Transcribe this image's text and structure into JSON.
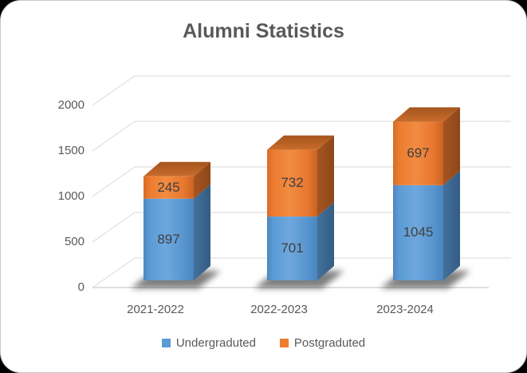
{
  "window": {
    "background_color": "#000000",
    "card_background_color": "#FFFFFF"
  },
  "chart_data": {
    "type": "bar",
    "stacked": true,
    "style": "3d",
    "title": "Alumni Statistics",
    "categories": [
      "2021-2022",
      "2022-2023",
      "2023-2024"
    ],
    "series": [
      {
        "name": "Undergraduted",
        "color": "#5B9BD5",
        "values": [
          897,
          701,
          1045
        ]
      },
      {
        "name": "Postgraduted",
        "color": "#ED7D31",
        "values": [
          245,
          732,
          697
        ]
      }
    ],
    "yticks": [
      0,
      500,
      1000,
      1500,
      2000
    ],
    "ylim": [
      0,
      2000
    ],
    "xlabel": "",
    "ylabel": "",
    "grid": true,
    "data_labels": true,
    "legend_position": "bottom",
    "colors": {
      "title_text": "#595959",
      "axis_text": "#595959",
      "data_label_text": "#3F3F3F",
      "gridline": "#D9D9D9",
      "axis_line": "#BFBFBF"
    }
  }
}
